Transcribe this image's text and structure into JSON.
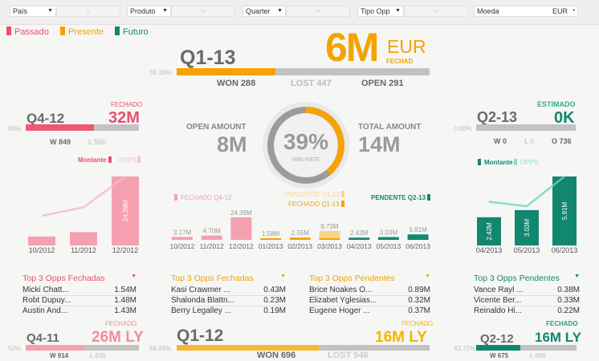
{
  "filters": [
    {
      "label": "País",
      "value": "○"
    },
    {
      "label": "Produto",
      "value": "○"
    },
    {
      "label": "Quarter",
      "value": "○"
    },
    {
      "label": "Tipo Opp",
      "value": "○"
    }
  ],
  "currency": {
    "label": "Moeda",
    "value": "EUR"
  },
  "legend": {
    "past": "Passado",
    "present": "Presente",
    "future": "Futuro"
  },
  "colors": {
    "past": "#e8506e",
    "present": "#f5a300",
    "future": "#12876f",
    "grey": "#c2c2c2"
  },
  "current": {
    "quarter": "Q1-13",
    "amount": "6M",
    "currency": "EUR",
    "status": "FECHAD",
    "win_pct": "39.18%",
    "win_fraction": 0.3918,
    "won": "WON 288",
    "lost": "LOST 447",
    "open": "OPEN 291"
  },
  "prev": {
    "quarter": "Q4-12",
    "status": "FECHADO",
    "amount": "32M",
    "win_pct": "60%",
    "win_fraction": 0.6,
    "won": "W 849",
    "lost": "L 560"
  },
  "next": {
    "quarter": "Q2-13",
    "status": "ESTIMADO",
    "amount": "0K",
    "win_pct": "0.00%",
    "win_fraction": 0,
    "won": "W 0",
    "lost": "L 0",
    "open": "O 736"
  },
  "center": {
    "open_label": "OPEN AMOUNT",
    "open_value": "8M",
    "total_label": "TOTAL AMOUNT",
    "total_value": "14M",
    "win_rate": "39%",
    "win_rate_label": "WIN  RATE",
    "win_rate_fraction": 0.39
  },
  "chart_data": [
    {
      "type": "bar",
      "name": "prev-months",
      "legend": [
        "Montante",
        "OPPS"
      ],
      "categories": [
        "10/2012",
        "11/2012",
        "12/2012"
      ],
      "values": [
        3.17,
        4.7,
        24.39
      ],
      "labels": [
        "",
        "",
        "24.39M"
      ],
      "line": [
        0.3,
        0.45,
        1.0
      ]
    },
    {
      "type": "bar",
      "name": "next-months",
      "legend": [
        "Montante",
        "OPPS"
      ],
      "categories": [
        "04/2013",
        "05/2013",
        "06/2013"
      ],
      "values": [
        2.42,
        3.03,
        5.91
      ],
      "labels": [
        "2.42M",
        "3.03M",
        "5.91M"
      ],
      "line": [
        0.55,
        0.47,
        1.0
      ]
    },
    {
      "type": "bar",
      "name": "monthly",
      "legend": [
        "FECHADO Q4-12",
        "PENDENTE Q1-13",
        "FECHADO Q1-13",
        "PENDENTE Q2-13"
      ],
      "categories": [
        "10/2012",
        "11/2012",
        "12/2012",
        "01/2013",
        "02/2013",
        "03/2013",
        "04/2013",
        "05/2013",
        "06/2013"
      ],
      "values": [
        3.17,
        4.7,
        24.39,
        1.58,
        2.55,
        9.73,
        2.42,
        3.03,
        5.91
      ],
      "labels": [
        "3.17M",
        "4.70M",
        "24.39M",
        "1.58M",
        "2.55M",
        "9.73M",
        "2.42M",
        "3.03M",
        "5.91M"
      ],
      "groups": [
        "past",
        "past",
        "past",
        "present",
        "present",
        "pending",
        "future",
        "future",
        "future"
      ]
    }
  ],
  "tops": [
    {
      "title": "Top 3 Opps Fechadas",
      "rows": [
        [
          "Micki  Chatt...",
          "1.54M"
        ],
        [
          "Robt  Dupuy...",
          "1.48M"
        ],
        [
          "Austin  And...",
          "1.43M"
        ]
      ]
    },
    {
      "title": "Top 3 Opps Fechadas",
      "rows": [
        [
          "Kasi  Crawmer ...",
          "0.43M"
        ],
        [
          "Shalonda  Blattn...",
          "0.23M"
        ],
        [
          "Berry  Legalley ...",
          "0.19M"
        ]
      ]
    },
    {
      "title": "Top 3 Opps Pendentes",
      "rows": [
        [
          "Brice  Noakes O...",
          "0.89M"
        ],
        [
          "Elizabet  Yglesias...",
          "0.32M"
        ],
        [
          "Eugene  Hoger ...",
          "0.37M"
        ]
      ]
    },
    {
      "title": "Top 3 Opps Pendentes",
      "rows": [
        [
          "Vance  Rayl ...",
          "0.38M"
        ],
        [
          "Vicente  Ber...",
          "0.33M"
        ],
        [
          "Reinaldo  Hi...",
          "0.22M"
        ]
      ]
    }
  ],
  "ly": [
    {
      "quarter": "Q4-11",
      "status": "FECHADO",
      "amount": "26M LY",
      "win_pct": "52%",
      "win_fraction": 0.52,
      "won": "W 914",
      "lost": "L 835"
    },
    {
      "quarter": "Q1-12",
      "status": "FECHADO",
      "amount": "16M LY",
      "win_pct": "56.04%",
      "win_fraction": 0.5604,
      "won": "WON 696",
      "lost": "LOST 546"
    },
    {
      "quarter": "Q2-12",
      "status": "FECHADO",
      "amount": "16M LY",
      "win_pct": "43.72%",
      "win_fraction": 0.4372,
      "won": "W 675",
      "lost": "L 869"
    }
  ]
}
